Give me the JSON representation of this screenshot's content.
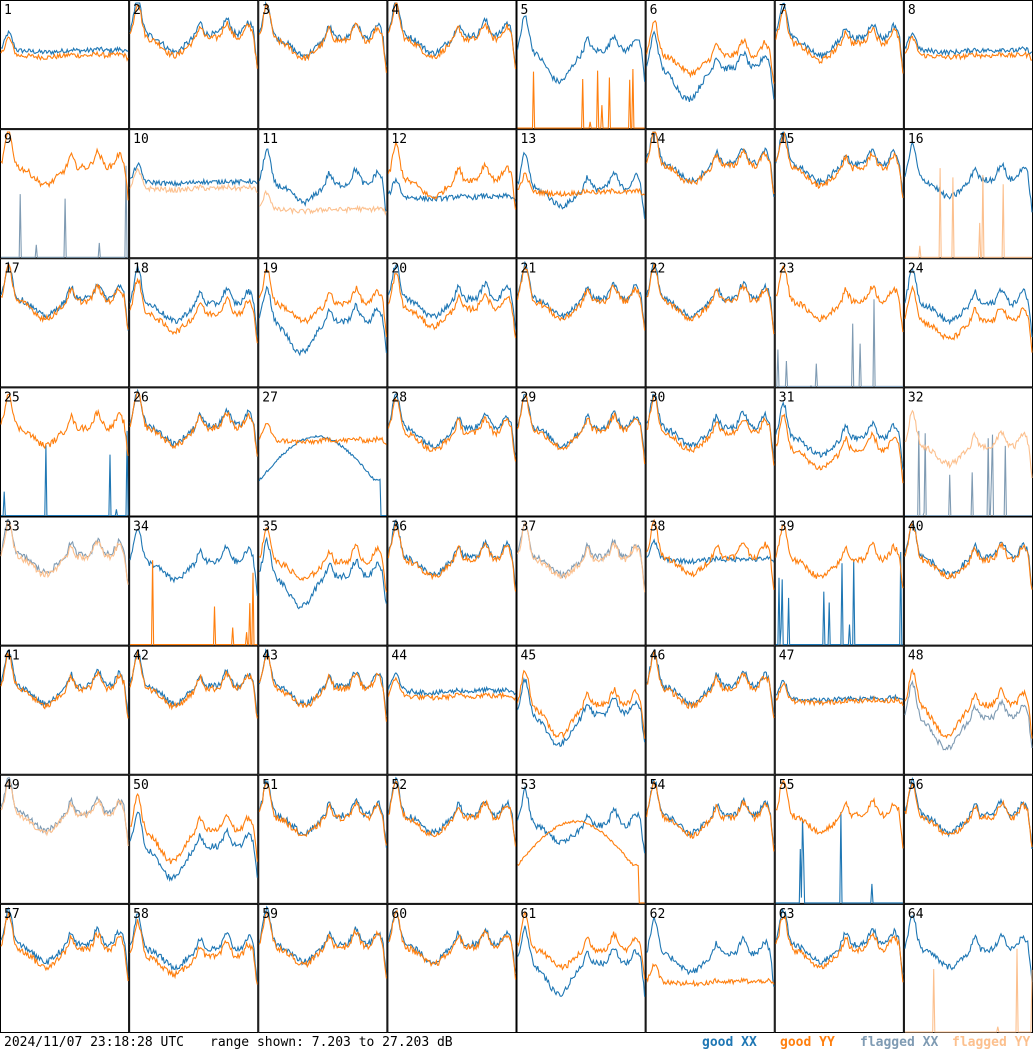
{
  "chart_data": {
    "type": "line",
    "layout": "grid-8x8 small multiples",
    "timestamp": "2024/11/07 23:18:28 UTC",
    "range_text": "range shown: 7.203 to 27.203 dB",
    "ylim": [
      7.203,
      27.203
    ],
    "legend": [
      {
        "label": "good XX",
        "color": "#1f77b4"
      },
      {
        "label": "good YY",
        "color": "#ff7f0e"
      },
      {
        "label": "flagged XX",
        "color": "#7f9bb3"
      },
      {
        "label": "flagged YY",
        "color": "#fcc08e"
      }
    ],
    "panels": [
      {
        "label": "1",
        "xx": "good",
        "yy": "good",
        "xx_lvl": 0.62,
        "yy_lvl": 0.58,
        "xx_shape": "flat",
        "yy_shape": "flat"
      },
      {
        "label": "2",
        "xx": "good",
        "yy": "good",
        "xx_lvl": 0.75,
        "yy_lvl": 0.72,
        "xx_shape": "normal",
        "yy_shape": "normal"
      },
      {
        "label": "3",
        "xx": "good",
        "yy": "good",
        "xx_lvl": 0.72,
        "yy_lvl": 0.7,
        "xx_shape": "normal",
        "yy_shape": "normal"
      },
      {
        "label": "4",
        "xx": "good",
        "yy": "good",
        "xx_lvl": 0.74,
        "yy_lvl": 0.71,
        "xx_shape": "normal",
        "yy_shape": "normal"
      },
      {
        "label": "5",
        "xx": "good",
        "yy": "good",
        "xx_lvl": 0.62,
        "yy_lvl": 0.0,
        "xx_shape": "dip",
        "yy_shape": "spikes"
      },
      {
        "label": "6",
        "xx": "good",
        "yy": "good",
        "xx_lvl": 0.48,
        "yy_lvl": 0.58,
        "xx_shape": "dip",
        "yy_shape": "normal"
      },
      {
        "label": "7",
        "xx": "good",
        "yy": "good",
        "xx_lvl": 0.72,
        "yy_lvl": 0.68,
        "xx_shape": "normal",
        "yy_shape": "normal"
      },
      {
        "label": "8",
        "xx": "good",
        "yy": "good",
        "xx_lvl": 0.62,
        "yy_lvl": 0.58,
        "xx_shape": "flat",
        "yy_shape": "flat"
      },
      {
        "label": "9",
        "xx": "flagged",
        "yy": "good",
        "xx_lvl": 0.0,
        "yy_lvl": 0.72,
        "xx_shape": "spikes",
        "yy_shape": "normal"
      },
      {
        "label": "10",
        "xx": "good",
        "yy": "flagged",
        "xx_lvl": 0.6,
        "yy_lvl": 0.55,
        "xx_shape": "flat",
        "yy_shape": "flat"
      },
      {
        "label": "11",
        "xx": "good",
        "yy": "flagged",
        "xx_lvl": 0.58,
        "yy_lvl": 0.38,
        "xx_shape": "normal",
        "yy_shape": "flat"
      },
      {
        "label": "12",
        "xx": "good",
        "yy": "good",
        "xx_lvl": 0.48,
        "yy_lvl": 0.62,
        "xx_shape": "flat",
        "yy_shape": "normal"
      },
      {
        "label": "13",
        "xx": "good",
        "yy": "good",
        "xx_lvl": 0.55,
        "yy_lvl": 0.52,
        "xx_shape": "normal",
        "yy_shape": "flat"
      },
      {
        "label": "14",
        "xx": "good",
        "yy": "good",
        "xx_lvl": 0.75,
        "yy_lvl": 0.73,
        "xx_shape": "normal",
        "yy_shape": "normal"
      },
      {
        "label": "15",
        "xx": "good",
        "yy": "good",
        "xx_lvl": 0.74,
        "yy_lvl": 0.71,
        "xx_shape": "normal",
        "yy_shape": "normal"
      },
      {
        "label": "16",
        "xx": "good",
        "yy": "flagged",
        "xx_lvl": 0.62,
        "yy_lvl": 0.0,
        "xx_shape": "normal",
        "yy_shape": "spikes"
      },
      {
        "label": "17",
        "xx": "good",
        "yy": "good",
        "xx_lvl": 0.7,
        "yy_lvl": 0.68,
        "xx_shape": "normal",
        "yy_shape": "normal"
      },
      {
        "label": "18",
        "xx": "good",
        "yy": "good",
        "xx_lvl": 0.66,
        "yy_lvl": 0.58,
        "xx_shape": "normal",
        "yy_shape": "normal"
      },
      {
        "label": "19",
        "xx": "good",
        "yy": "good",
        "xx_lvl": 0.52,
        "yy_lvl": 0.66,
        "xx_shape": "dip",
        "yy_shape": "normal"
      },
      {
        "label": "20",
        "xx": "good",
        "yy": "good",
        "xx_lvl": 0.7,
        "yy_lvl": 0.62,
        "xx_shape": "normal",
        "yy_shape": "normal"
      },
      {
        "label": "21",
        "xx": "good",
        "yy": "good",
        "xx_lvl": 0.7,
        "yy_lvl": 0.68,
        "xx_shape": "normal",
        "yy_shape": "normal"
      },
      {
        "label": "22",
        "xx": "good",
        "yy": "good",
        "xx_lvl": 0.7,
        "yy_lvl": 0.68,
        "xx_shape": "normal",
        "yy_shape": "normal"
      },
      {
        "label": "23",
        "xx": "flagged",
        "yy": "good",
        "xx_lvl": 0.0,
        "yy_lvl": 0.68,
        "xx_shape": "spikes",
        "yy_shape": "normal"
      },
      {
        "label": "24",
        "xx": "good",
        "yy": "good",
        "xx_lvl": 0.66,
        "yy_lvl": 0.52,
        "xx_shape": "normal",
        "yy_shape": "normal"
      },
      {
        "label": "25",
        "xx": "good",
        "yy": "good",
        "xx_lvl": 0.0,
        "yy_lvl": 0.7,
        "xx_shape": "spikes",
        "yy_shape": "normal"
      },
      {
        "label": "26",
        "xx": "good",
        "yy": "good",
        "xx_lvl": 0.72,
        "yy_lvl": 0.7,
        "xx_shape": "normal",
        "yy_shape": "normal"
      },
      {
        "label": "27",
        "xx": "good",
        "yy": "good",
        "xx_lvl": 0.28,
        "yy_lvl": 0.6,
        "xx_shape": "hump",
        "yy_shape": "flat"
      },
      {
        "label": "28",
        "xx": "good",
        "yy": "good",
        "xx_lvl": 0.7,
        "yy_lvl": 0.66,
        "xx_shape": "normal",
        "yy_shape": "normal"
      },
      {
        "label": "29",
        "xx": "good",
        "yy": "good",
        "xx_lvl": 0.7,
        "yy_lvl": 0.68,
        "xx_shape": "normal",
        "yy_shape": "normal"
      },
      {
        "label": "30",
        "xx": "good",
        "yy": "good",
        "xx_lvl": 0.7,
        "yy_lvl": 0.66,
        "xx_shape": "normal",
        "yy_shape": "normal"
      },
      {
        "label": "31",
        "xx": "good",
        "yy": "good",
        "xx_lvl": 0.62,
        "yy_lvl": 0.52,
        "xx_shape": "normal",
        "yy_shape": "normal"
      },
      {
        "label": "32",
        "xx": "flagged",
        "yy": "flagged",
        "xx_lvl": 0.0,
        "yy_lvl": 0.55,
        "xx_shape": "spikes",
        "yy_shape": "normal"
      },
      {
        "label": "33",
        "xx": "flagged",
        "yy": "flagged",
        "xx_lvl": 0.72,
        "yy_lvl": 0.7,
        "xx_shape": "normal",
        "yy_shape": "normal"
      },
      {
        "label": "34",
        "xx": "good",
        "yy": "good",
        "xx_lvl": 0.66,
        "yy_lvl": 0.0,
        "xx_shape": "normal",
        "yy_shape": "spikes"
      },
      {
        "label": "35",
        "xx": "good",
        "yy": "good",
        "xx_lvl": 0.55,
        "yy_lvl": 0.66,
        "xx_shape": "dip",
        "yy_shape": "normal"
      },
      {
        "label": "36",
        "xx": "good",
        "yy": "good",
        "xx_lvl": 0.7,
        "yy_lvl": 0.68,
        "xx_shape": "normal",
        "yy_shape": "normal"
      },
      {
        "label": "37",
        "xx": "flagged",
        "yy": "flagged",
        "xx_lvl": 0.7,
        "yy_lvl": 0.68,
        "xx_shape": "normal",
        "yy_shape": "normal"
      },
      {
        "label": "38",
        "xx": "good",
        "yy": "good",
        "xx_lvl": 0.68,
        "yy_lvl": 0.7,
        "xx_shape": "flat",
        "yy_shape": "normal"
      },
      {
        "label": "39",
        "xx": "good",
        "yy": "good",
        "xx_lvl": 0.0,
        "yy_lvl": 0.68,
        "xx_shape": "spikes",
        "yy_shape": "normal"
      },
      {
        "label": "40",
        "xx": "good",
        "yy": "good",
        "xx_lvl": 0.7,
        "yy_lvl": 0.68,
        "xx_shape": "normal",
        "yy_shape": "normal"
      },
      {
        "label": "41",
        "xx": "good",
        "yy": "good",
        "xx_lvl": 0.7,
        "yy_lvl": 0.68,
        "xx_shape": "normal",
        "yy_shape": "normal"
      },
      {
        "label": "42",
        "xx": "good",
        "yy": "good",
        "xx_lvl": 0.7,
        "yy_lvl": 0.68,
        "xx_shape": "normal",
        "yy_shape": "normal"
      },
      {
        "label": "43",
        "xx": "good",
        "yy": "good",
        "xx_lvl": 0.7,
        "yy_lvl": 0.68,
        "xx_shape": "normal",
        "yy_shape": "normal"
      },
      {
        "label": "44",
        "xx": "good",
        "yy": "good",
        "xx_lvl": 0.66,
        "yy_lvl": 0.62,
        "xx_shape": "flat",
        "yy_shape": "flat"
      },
      {
        "label": "45",
        "xx": "good",
        "yy": "good",
        "xx_lvl": 0.48,
        "yy_lvl": 0.55,
        "xx_shape": "dip",
        "yy_shape": "dip"
      },
      {
        "label": "46",
        "xx": "good",
        "yy": "good",
        "xx_lvl": 0.7,
        "yy_lvl": 0.68,
        "xx_shape": "normal",
        "yy_shape": "normal"
      },
      {
        "label": "47",
        "xx": "good",
        "yy": "good",
        "xx_lvl": 0.6,
        "yy_lvl": 0.58,
        "xx_shape": "flat",
        "yy_shape": "flat"
      },
      {
        "label": "48",
        "xx": "flagged",
        "yy": "good",
        "xx_lvl": 0.45,
        "yy_lvl": 0.55,
        "xx_shape": "dip",
        "yy_shape": "dip"
      },
      {
        "label": "49",
        "xx": "flagged",
        "yy": "flagged",
        "xx_lvl": 0.72,
        "yy_lvl": 0.7,
        "xx_shape": "normal",
        "yy_shape": "normal"
      },
      {
        "label": "50",
        "xx": "good",
        "yy": "good",
        "xx_lvl": 0.45,
        "yy_lvl": 0.58,
        "xx_shape": "dip",
        "yy_shape": "dip"
      },
      {
        "label": "51",
        "xx": "good",
        "yy": "good",
        "xx_lvl": 0.7,
        "yy_lvl": 0.68,
        "xx_shape": "normal",
        "yy_shape": "normal"
      },
      {
        "label": "52",
        "xx": "good",
        "yy": "good",
        "xx_lvl": 0.7,
        "yy_lvl": 0.68,
        "xx_shape": "normal",
        "yy_shape": "normal"
      },
      {
        "label": "53",
        "xx": "good",
        "yy": "good",
        "xx_lvl": 0.62,
        "yy_lvl": 0.3,
        "xx_shape": "normal",
        "yy_shape": "hump"
      },
      {
        "label": "54",
        "xx": "good",
        "yy": "good",
        "xx_lvl": 0.7,
        "yy_lvl": 0.68,
        "xx_shape": "normal",
        "yy_shape": "normal"
      },
      {
        "label": "55",
        "xx": "good",
        "yy": "good",
        "xx_lvl": 0.0,
        "yy_lvl": 0.7,
        "xx_shape": "spikes",
        "yy_shape": "normal"
      },
      {
        "label": "56",
        "xx": "good",
        "yy": "good",
        "xx_lvl": 0.7,
        "yy_lvl": 0.68,
        "xx_shape": "normal",
        "yy_shape": "normal"
      },
      {
        "label": "57",
        "xx": "good",
        "yy": "good",
        "xx_lvl": 0.7,
        "yy_lvl": 0.66,
        "xx_shape": "normal",
        "yy_shape": "normal"
      },
      {
        "label": "58",
        "xx": "good",
        "yy": "good",
        "xx_lvl": 0.66,
        "yy_lvl": 0.6,
        "xx_shape": "normal",
        "yy_shape": "normal"
      },
      {
        "label": "59",
        "xx": "good",
        "yy": "good",
        "xx_lvl": 0.7,
        "yy_lvl": 0.68,
        "xx_shape": "normal",
        "yy_shape": "normal"
      },
      {
        "label": "60",
        "xx": "good",
        "yy": "good",
        "xx_lvl": 0.7,
        "yy_lvl": 0.68,
        "xx_shape": "normal",
        "yy_shape": "normal"
      },
      {
        "label": "61",
        "xx": "good",
        "yy": "good",
        "xx_lvl": 0.55,
        "yy_lvl": 0.66,
        "xx_shape": "dip",
        "yy_shape": "normal"
      },
      {
        "label": "62",
        "xx": "good",
        "yy": "good",
        "xx_lvl": 0.62,
        "yy_lvl": 0.4,
        "xx_shape": "normal",
        "yy_shape": "flat"
      },
      {
        "label": "63",
        "xx": "good",
        "yy": "good",
        "xx_lvl": 0.7,
        "yy_lvl": 0.66,
        "xx_shape": "normal",
        "yy_shape": "normal"
      },
      {
        "label": "64",
        "xx": "good",
        "yy": "flagged",
        "xx_lvl": 0.66,
        "yy_lvl": 0.0,
        "xx_shape": "normal",
        "yy_shape": "spikes"
      }
    ]
  }
}
